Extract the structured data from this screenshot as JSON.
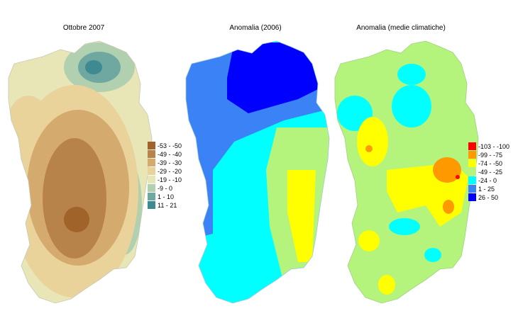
{
  "maps": [
    {
      "title": "Ottobre 2007",
      "legend": [
        {
          "label": "-53 - -50",
          "color": "#a0632a"
        },
        {
          "label": "-49 - -40",
          "color": "#b8834a"
        },
        {
          "label": "-39 - -30",
          "color": "#d4aa6e"
        },
        {
          "label": "-29 - -20",
          "color": "#ead39a"
        },
        {
          "label": "-19 - -10",
          "color": "#e8e6b6"
        },
        {
          "label": "-9 - 0",
          "color": "#b0d0b0"
        },
        {
          "label": "1 - 10",
          "color": "#6fa8a0"
        },
        {
          "label": "11 - 21",
          "color": "#3e8a90"
        }
      ]
    },
    {
      "title": "Anomalia (2006)",
      "legend": []
    },
    {
      "title": "Anomalia (medie climatiche)",
      "legend": [
        {
          "label": "-103 - -100",
          "color": "#ff0000"
        },
        {
          "label": "-99 - -75",
          "color": "#ff9900"
        },
        {
          "label": "-74 - -50",
          "color": "#ffff00"
        },
        {
          "label": "-49 - -25",
          "color": "#b4f47c"
        },
        {
          "label": "-24 - 0",
          "color": "#00ffff"
        },
        {
          "label": "1 - 25",
          "color": "#3b82f6"
        },
        {
          "label": "26 - 50",
          "color": "#0000ff"
        }
      ]
    }
  ]
}
